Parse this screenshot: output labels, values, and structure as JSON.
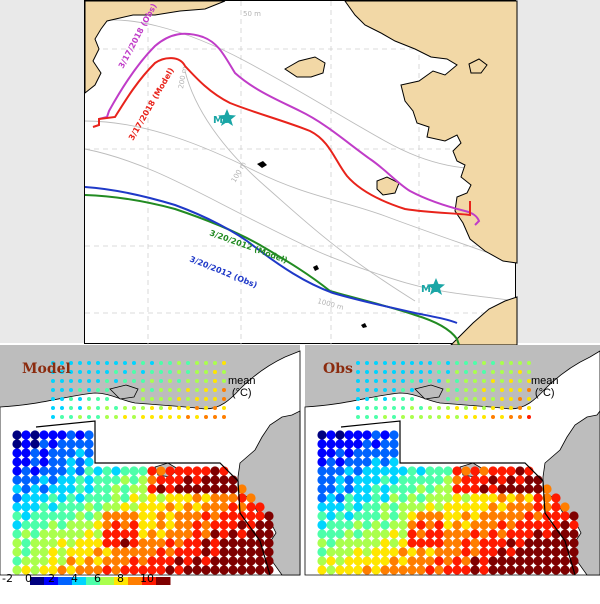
{
  "top_map": {
    "lines": [
      {
        "label": "3/17/2018 (Obs)",
        "color": "#c03cc8"
      },
      {
        "label": "3/17/2018 (Model)",
        "color": "#e8231b"
      },
      {
        "label": "3/20/2012 (Model)",
        "color": "#228b22"
      },
      {
        "label": "3/20/2012 (Obs)",
        "color": "#1f39c8"
      }
    ],
    "stations": [
      {
        "label": "M8",
        "color": "#1aa6a6"
      },
      {
        "label": "M2",
        "color": "#1aa6a6"
      }
    ],
    "contours": [
      "50 m",
      "100 m",
      "200 m",
      "1000 m"
    ],
    "land_color": "#f2d8a6"
  },
  "left_panel": {
    "title": "Model",
    "mean_label": "mean",
    "unit": "(°C)"
  },
  "right_panel": {
    "title": "Obs",
    "mean_label": "mean",
    "unit": "(°C)"
  },
  "colorbar": {
    "ticks": [
      "-2",
      "0",
      "2",
      "4",
      "6",
      "8",
      "10"
    ],
    "colors": [
      "#00007f",
      "#0000ff",
      "#0063ff",
      "#00d4ff",
      "#4dffaa",
      "#aaff4d",
      "#ffe600",
      "#ff7e00",
      "#ff1a00",
      "#7f0000"
    ]
  }
}
